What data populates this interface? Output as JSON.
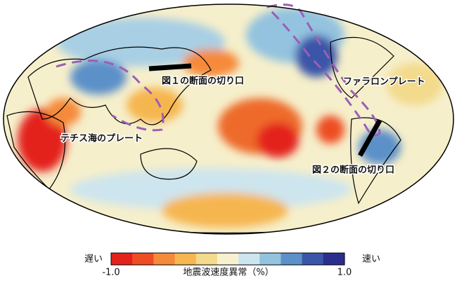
{
  "map": {
    "annotations": [
      "図１の断面の切り口",
      "ファラロンプレート",
      "テチス海のプレート",
      "図２の断面の切り口"
    ]
  },
  "colorbar": {
    "title": "地震波速度異常（%）",
    "slow_label": "遅い",
    "fast_label": "速い",
    "colors": [
      "#e3221c",
      "#ee4d24",
      "#f58a3b",
      "#f6b650",
      "#f3da8c",
      "#f7f1cf",
      "#cde5ee",
      "#93c3df",
      "#5c90c9",
      "#3b55a8",
      "#2b2d8f"
    ],
    "ticks": [
      {
        "value": -1,
        "label": "-1.0"
      },
      {
        "value": 1,
        "label": "1.0"
      }
    ]
  }
}
